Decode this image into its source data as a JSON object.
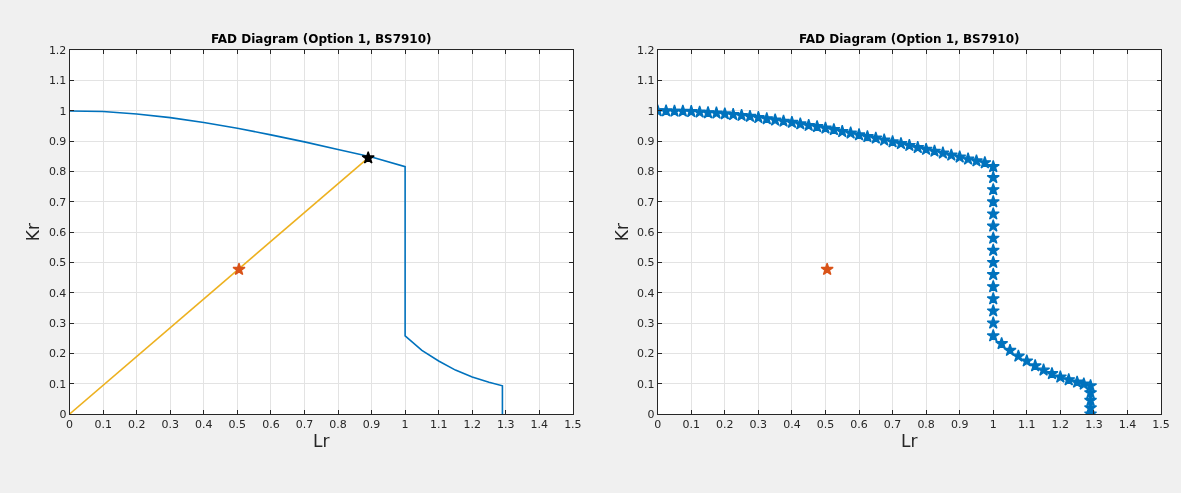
{
  "chart_data": [
    {
      "type": "line",
      "title": "FAD Diagram (Option 1, BS7910)",
      "xlabel": "Lr",
      "ylabel": "Kr",
      "xlim": [
        0,
        1.5
      ],
      "ylim": [
        0,
        1.2
      ],
      "xticks": [
        0,
        0.1,
        0.2,
        0.3,
        0.4,
        0.5,
        0.6,
        0.7,
        0.8,
        0.9,
        1,
        1.1,
        1.2,
        1.3,
        1.4,
        1.5
      ],
      "yticks": [
        0,
        0.1,
        0.2,
        0.3,
        0.4,
        0.5,
        0.6,
        0.7,
        0.8,
        0.9,
        1,
        1.1,
        1.2
      ],
      "grid": true,
      "series": [
        {
          "color": "#0072bd",
          "marker": "none",
          "x": [
            0,
            0.1,
            0.2,
            0.3,
            0.4,
            0.5,
            0.6,
            0.7,
            0.8,
            0.9,
            1,
            1,
            1.05,
            1.1,
            1.15,
            1.2,
            1.25,
            1.29,
            1.29
          ],
          "values": [
            1,
            0.998,
            0.99,
            0.978,
            0.962,
            0.943,
            0.921,
            0.898,
            0.873,
            0.848,
            0.816,
            0.258,
            0.21,
            0.175,
            0.145,
            0.122,
            0.105,
            0.093,
            0
          ]
        },
        {
          "color": "#edb120",
          "marker": "none",
          "x": [
            0,
            0.89
          ],
          "values": [
            0,
            0.845
          ]
        },
        {
          "type": "scatter",
          "color": "#d95319",
          "marker": "star",
          "x": [
            0.505
          ],
          "values": [
            0.477
          ]
        },
        {
          "type": "scatter",
          "color": "#000000",
          "marker": "star",
          "x": [
            0.89
          ],
          "values": [
            0.845
          ]
        }
      ]
    },
    {
      "type": "scatter",
      "title": "FAD Diagram (Option 1, BS7910)",
      "xlabel": "Lr",
      "ylabel": "Kr",
      "xlim": [
        0,
        1.5
      ],
      "ylim": [
        0,
        1.2
      ],
      "xticks": [
        0,
        0.1,
        0.2,
        0.3,
        0.4,
        0.5,
        0.6,
        0.7,
        0.8,
        0.9,
        1,
        1.1,
        1.2,
        1.3,
        1.4,
        1.5
      ],
      "yticks": [
        0,
        0.1,
        0.2,
        0.3,
        0.4,
        0.5,
        0.6,
        0.7,
        0.8,
        0.9,
        1,
        1.1,
        1.2
      ],
      "grid": true,
      "series": [
        {
          "color": "#0072bd",
          "marker": "star",
          "x": [
            0,
            0.025,
            0.05,
            0.075,
            0.1,
            0.125,
            0.15,
            0.175,
            0.2,
            0.225,
            0.25,
            0.275,
            0.3,
            0.325,
            0.35,
            0.375,
            0.4,
            0.425,
            0.45,
            0.475,
            0.5,
            0.525,
            0.55,
            0.575,
            0.6,
            0.625,
            0.65,
            0.675,
            0.7,
            0.725,
            0.75,
            0.775,
            0.8,
            0.825,
            0.85,
            0.875,
            0.9,
            0.925,
            0.95,
            0.975,
            1,
            1,
            1,
            1,
            1,
            1,
            1,
            1,
            1,
            1,
            1,
            1,
            1,
            1,
            1,
            1.025,
            1.05,
            1.075,
            1.1,
            1.125,
            1.15,
            1.175,
            1.2,
            1.225,
            1.25,
            1.27,
            1.29,
            1.29,
            1.29,
            1.29,
            1.29
          ],
          "values": [
            1,
            1,
            0.999,
            0.999,
            0.998,
            0.996,
            0.994,
            0.993,
            0.99,
            0.988,
            0.985,
            0.982,
            0.978,
            0.974,
            0.97,
            0.966,
            0.962,
            0.957,
            0.952,
            0.948,
            0.943,
            0.938,
            0.932,
            0.927,
            0.921,
            0.915,
            0.91,
            0.904,
            0.898,
            0.892,
            0.886,
            0.879,
            0.873,
            0.867,
            0.861,
            0.854,
            0.848,
            0.841,
            0.835,
            0.829,
            0.816,
            0.78,
            0.74,
            0.7,
            0.66,
            0.62,
            0.58,
            0.54,
            0.5,
            0.46,
            0.42,
            0.38,
            0.34,
            0.3,
            0.258,
            0.232,
            0.21,
            0.191,
            0.175,
            0.159,
            0.145,
            0.133,
            0.122,
            0.113,
            0.105,
            0.099,
            0.093,
            0.07,
            0.045,
            0.02,
            0
          ]
        },
        {
          "color": "#d95319",
          "marker": "star",
          "x": [
            0.505
          ],
          "values": [
            0.477
          ]
        }
      ]
    }
  ]
}
